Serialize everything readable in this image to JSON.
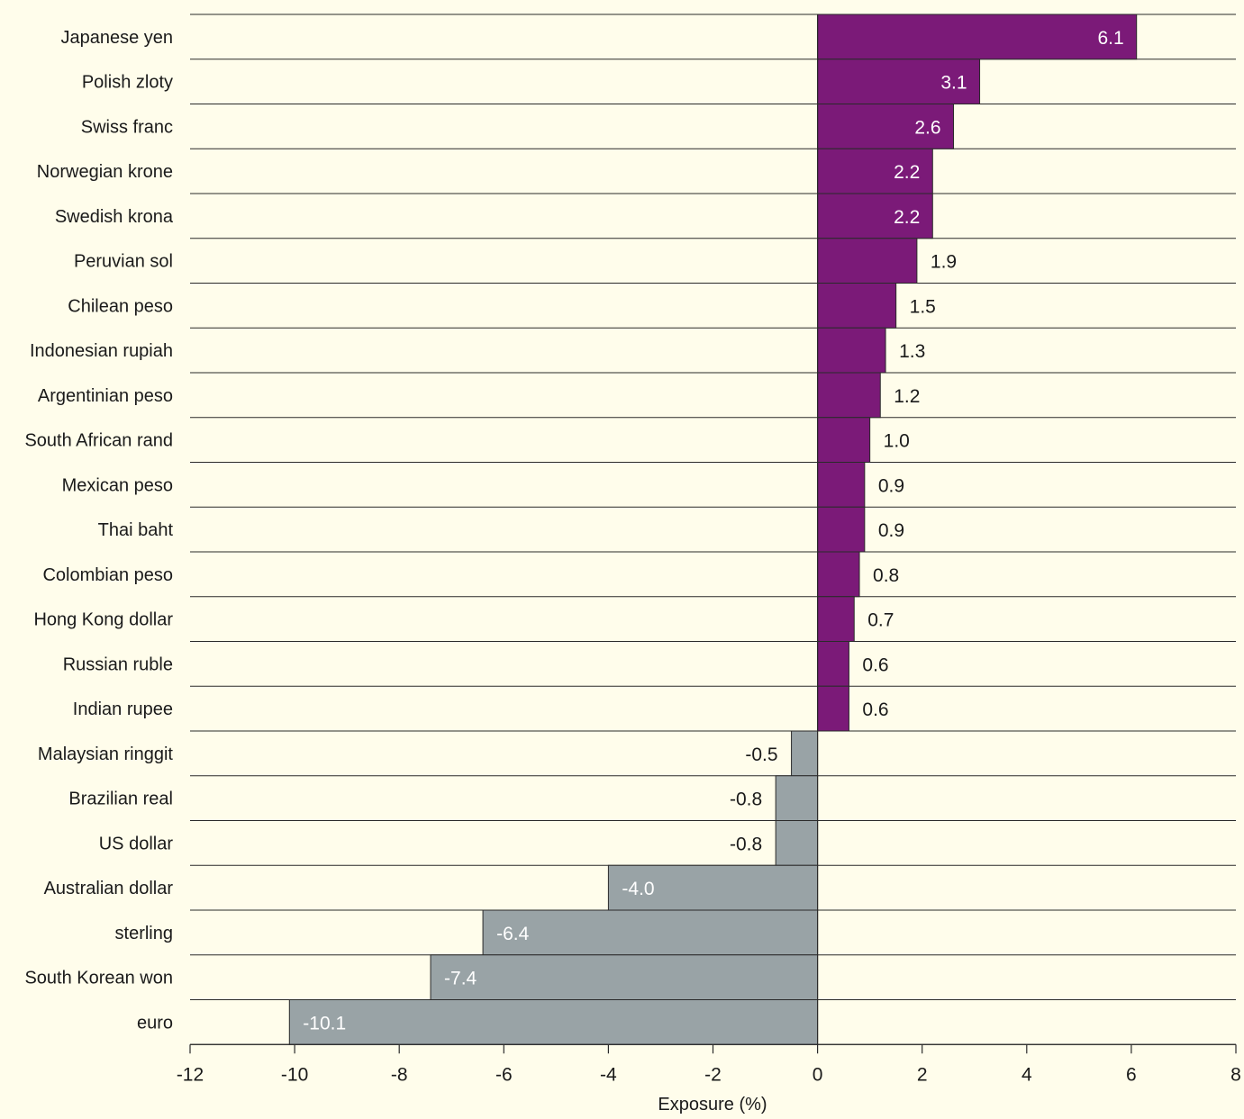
{
  "chart_data": {
    "type": "bar",
    "orientation": "horizontal",
    "title": "",
    "xlabel": "Exposure (%)",
    "ylabel": "",
    "xlim": [
      -12,
      8
    ],
    "xticks": [
      "-12",
      "-10",
      "-8",
      "-6",
      "-4",
      "-2",
      "0",
      "2",
      "4",
      "6",
      "8"
    ],
    "grid": "horizontal row separators",
    "categories": [
      "Japanese yen",
      "Polish zloty",
      "Swiss franc",
      "Norwegian krone",
      "Swedish krona",
      "Peruvian sol",
      "Chilean peso",
      "Indonesian rupiah",
      "Argentinian peso",
      "South African rand",
      "Mexican peso",
      "Thai baht",
      "Colombian peso",
      "Hong Kong dollar",
      "Russian ruble",
      "Indian rupee",
      "Malaysian ringgit",
      "Brazilian real",
      "US dollar",
      "Australian dollar",
      "sterling",
      "South Korean won",
      "euro"
    ],
    "values": [
      6.1,
      3.1,
      2.6,
      2.2,
      2.2,
      1.9,
      1.5,
      1.3,
      1.2,
      1.0,
      0.9,
      0.9,
      0.8,
      0.7,
      0.6,
      0.6,
      -0.5,
      -0.8,
      -0.8,
      -4.0,
      -6.4,
      -7.4,
      -10.1
    ],
    "labels": [
      "6.1",
      "3.1",
      "2.6",
      "2.2",
      "2.2",
      "1.9",
      "1.5",
      "1.3",
      "1.2",
      "1.0",
      "0.9",
      "0.9",
      "0.8",
      "0.7",
      "0.6",
      "0.6",
      "-0.5",
      "-0.8",
      "-0.8",
      "-4.0",
      "-6.4",
      "-7.4",
      "-10.1"
    ],
    "colors": {
      "positive": "#7b1a78",
      "negative": "#99a3a6",
      "background": "#fffdeb",
      "rule": "#2a2a2a"
    }
  }
}
